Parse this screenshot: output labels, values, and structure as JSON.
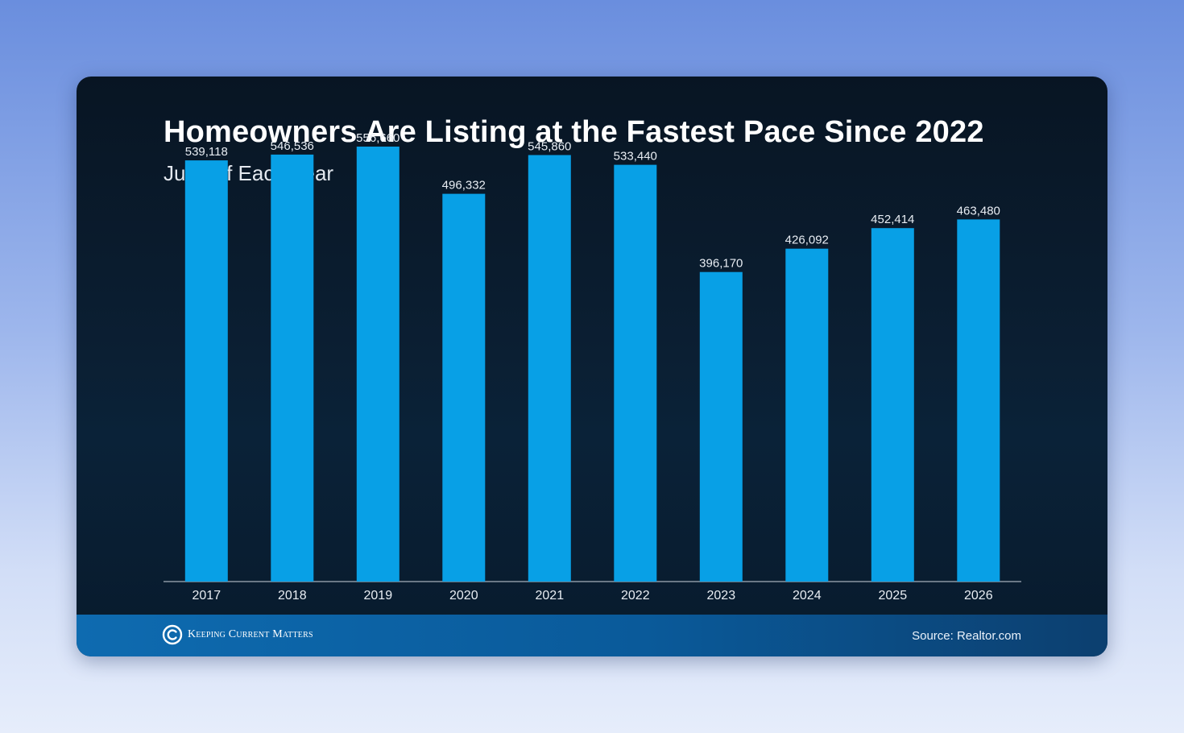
{
  "colors": {
    "bar": "#08a0e6",
    "baseline": "#8b96a3",
    "label": "#e8edf3"
  },
  "chart_data": {
    "type": "bar",
    "title": "Homeowners Are Listing at the Fastest Pace Since 2022",
    "subtitle": "June of Each Year",
    "categories": [
      "2017",
      "2018",
      "2019",
      "2020",
      "2021",
      "2022",
      "2023",
      "2024",
      "2025",
      "2026"
    ],
    "values": [
      539118,
      546536,
      556660,
      496332,
      545860,
      533440,
      396170,
      426092,
      452414,
      463480
    ],
    "value_labels": [
      "539,118",
      "546,536",
      "556,660",
      "496,332",
      "545,860",
      "533,440",
      "396,170",
      "426,092",
      "452,414",
      "463,480"
    ],
    "ylim": [
      0,
      600000
    ],
    "grid": false,
    "legend": "none"
  },
  "footer": {
    "brand": "Keeping Current Matters",
    "brand_icon": "kcm-logo-icon",
    "source": "Source: Realtor.com"
  }
}
